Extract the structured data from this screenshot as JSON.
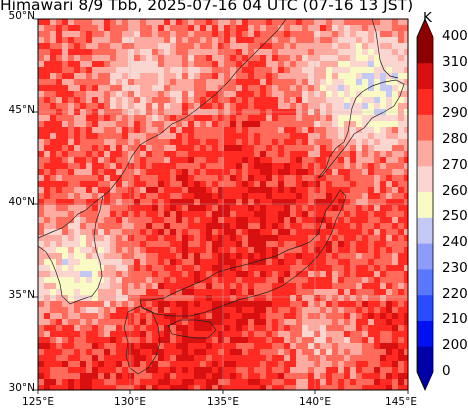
{
  "title": "Himawari 8/9 Tbb, 2025-07-16 04 UTC (07-16 13 JST)",
  "map": {
    "lat_range": [
      30,
      50
    ],
    "lon_range": [
      125,
      145
    ],
    "lat_ticks": [
      "30°N",
      "35°N",
      "40°N",
      "45°N",
      "50°N"
    ],
    "lon_ticks": [
      "125°E",
      "130°E",
      "135°E",
      "140°E",
      "145°E"
    ],
    "grid": true,
    "coastlines": true
  },
  "colorbar": {
    "unit": "K",
    "levels": [
      "0",
      "200",
      "210",
      "220",
      "230",
      "240",
      "250",
      "260",
      "270",
      "280",
      "290",
      "300",
      "310",
      "400"
    ],
    "colors": [
      "#0000a8",
      "#0010f0",
      "#2a4cff",
      "#5a78ff",
      "#8c9cf8",
      "#c4c8f4",
      "#fafac4",
      "#fbd6d0",
      "#ffaaa0",
      "#ff6a5a",
      "#ff2a22",
      "#d81010",
      "#8c0000"
    ]
  }
}
